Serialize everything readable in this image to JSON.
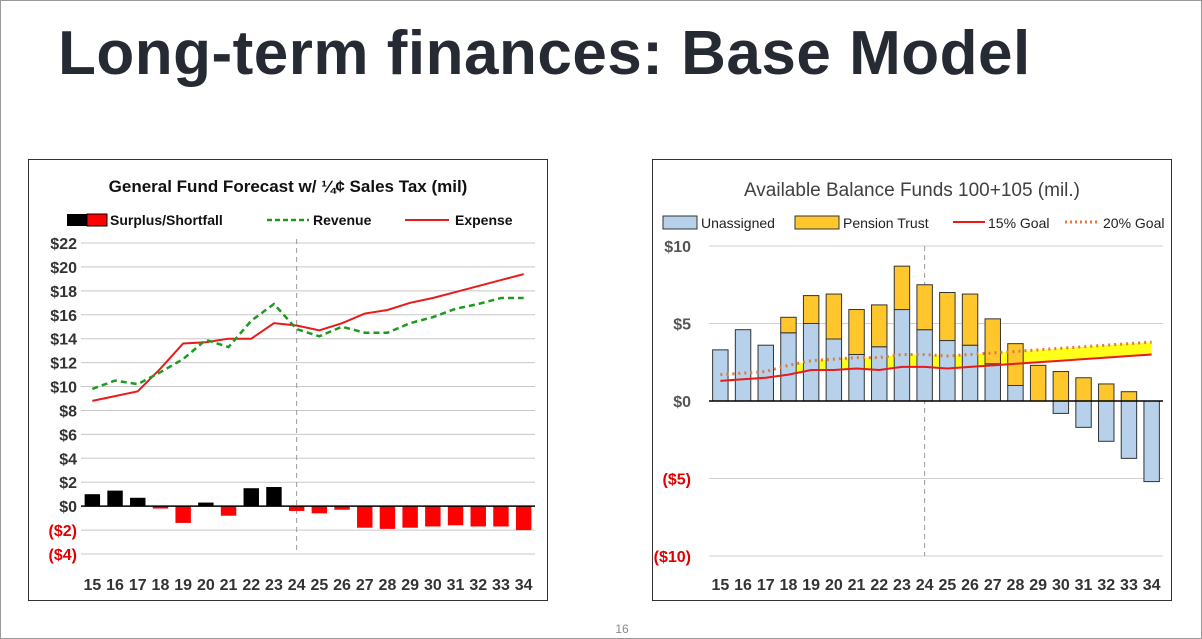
{
  "slide": {
    "title": "Long-term finances: Base Model",
    "page_number": "16"
  },
  "colors": {
    "surplus": "#000000",
    "shortfall": "#ff0000",
    "revenue": "#1e9a1e",
    "expense": "#e81b1b",
    "unassigned": "#b7d1ea",
    "pension": "#ffc72c",
    "goal15": "#e81b1b",
    "goal20": "#e07b39",
    "goal_band": "#ffff00",
    "negative_label": "#e00000"
  },
  "chart_data": [
    {
      "type": "bar+line",
      "title": "General Fund Forecast w/ ¼¢ Sales Tax (mil)",
      "legend": [
        "Surplus/Shortfall",
        "Revenue",
        "Expense"
      ],
      "x": [
        "15",
        "16",
        "17",
        "18",
        "19",
        "20",
        "21",
        "22",
        "23",
        "24",
        "25",
        "26",
        "27",
        "28",
        "29",
        "30",
        "31",
        "32",
        "33",
        "34"
      ],
      "y_ticks": [
        "$22",
        "$20",
        "$18",
        "$16",
        "$14",
        "$12",
        "$10",
        "$8",
        "$6",
        "$4",
        "$2",
        "$0",
        "($2)",
        "($4)"
      ],
      "ylim": [
        -4,
        22
      ],
      "divider_at": "24",
      "series": [
        {
          "name": "Surplus/Shortfall",
          "kind": "bar",
          "values": [
            1.0,
            1.3,
            0.7,
            -0.2,
            -1.4,
            0.3,
            -0.8,
            1.5,
            1.6,
            -0.4,
            -0.6,
            -0.3,
            -1.8,
            -1.9,
            -1.8,
            -1.7,
            -1.6,
            -1.7,
            -1.7,
            -2.0
          ]
        },
        {
          "name": "Revenue",
          "kind": "line",
          "values": [
            9.8,
            10.5,
            10.2,
            11.2,
            12.3,
            13.9,
            13.3,
            15.5,
            16.9,
            14.8,
            14.2,
            15.0,
            14.5,
            14.5,
            15.3,
            15.8,
            16.5,
            16.9,
            17.4,
            17.4
          ]
        },
        {
          "name": "Expense",
          "kind": "line",
          "values": [
            8.8,
            9.2,
            9.6,
            11.5,
            13.6,
            13.7,
            14.0,
            14.0,
            15.3,
            15.1,
            14.7,
            15.3,
            16.1,
            16.4,
            17.0,
            17.4,
            17.9,
            18.4,
            18.9,
            19.4
          ]
        }
      ]
    },
    {
      "type": "stacked-bar+line",
      "title": "Available Balance Funds 100+105 (mil.)",
      "legend": [
        "Unassigned",
        "Pension Trust",
        "15% Goal",
        "20% Goal"
      ],
      "x": [
        "15",
        "16",
        "17",
        "18",
        "19",
        "20",
        "21",
        "22",
        "23",
        "24",
        "25",
        "26",
        "27",
        "28",
        "29",
        "30",
        "31",
        "32",
        "33",
        "34"
      ],
      "y_ticks": [
        "$10",
        "$5",
        "$0",
        "($5)",
        "($10)"
      ],
      "ylim": [
        -10,
        10
      ],
      "divider_at": "24",
      "series": [
        {
          "name": "Unassigned",
          "kind": "bar",
          "values": [
            3.3,
            4.6,
            3.6,
            4.4,
            5.0,
            4.0,
            3.0,
            3.5,
            5.9,
            4.6,
            3.9,
            3.6,
            2.4,
            1.0,
            0,
            -0.8,
            -1.7,
            -2.6,
            -3.7,
            -5.2
          ]
        },
        {
          "name": "Pension Trust",
          "kind": "bar",
          "values": [
            0,
            0,
            0,
            1.0,
            1.8,
            2.9,
            2.9,
            2.7,
            2.8,
            2.9,
            3.1,
            3.3,
            2.9,
            2.7,
            2.3,
            1.9,
            1.5,
            1.1,
            0.6,
            0
          ]
        },
        {
          "name": "15% Goal",
          "kind": "line",
          "values": [
            1.3,
            1.4,
            1.5,
            1.7,
            2.0,
            2.0,
            2.1,
            2.0,
            2.2,
            2.2,
            2.1,
            2.2,
            2.3,
            2.4,
            2.5,
            2.6,
            2.7,
            2.8,
            2.9,
            3.0
          ]
        },
        {
          "name": "20% Goal",
          "kind": "line",
          "values": [
            1.7,
            1.8,
            1.9,
            2.3,
            2.6,
            2.7,
            2.8,
            2.8,
            3.0,
            3.0,
            2.9,
            3.0,
            3.1,
            3.2,
            3.3,
            3.4,
            3.5,
            3.6,
            3.7,
            3.8
          ]
        }
      ]
    }
  ]
}
